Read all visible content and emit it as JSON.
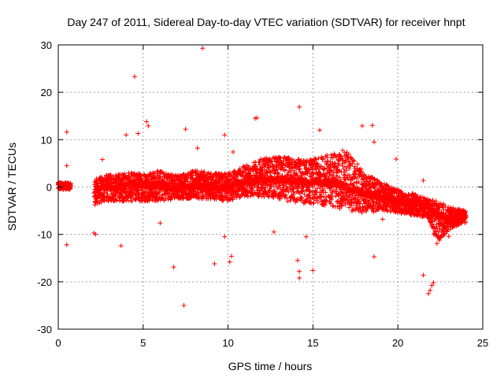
{
  "chart_data": {
    "type": "scatter",
    "title": "Day 247 of 2011, Sidereal Day-to-day VTEC variation (SDTVAR) for receiver hnpt",
    "xlabel": "GPS time / hours",
    "ylabel": "SDTVAR / TECUs",
    "xlim": [
      0,
      25
    ],
    "ylim": [
      -30,
      30
    ],
    "xticks": [
      0,
      5,
      10,
      15,
      20,
      25
    ],
    "yticks": [
      -30,
      -20,
      -10,
      0,
      10,
      20,
      30
    ],
    "grid": true,
    "marker": "+",
    "color": "#ff0000",
    "series": [
      {
        "name": "SDTVAR",
        "trend": [
          {
            "x": 0.0,
            "y": 0.5,
            "lo": -0.6,
            "hi": 1.0
          },
          {
            "x": 0.6,
            "y": 0.3,
            "lo": -0.5,
            "hi": 0.8
          },
          {
            "x": 2.0,
            "y": -1.0,
            "lo": -4.0,
            "hi": 1.5
          },
          {
            "x": 2.8,
            "y": 0.0,
            "lo": -3.0,
            "hi": 2.5
          },
          {
            "x": 4.0,
            "y": 0.5,
            "lo": -3.0,
            "hi": 3.0
          },
          {
            "x": 5.0,
            "y": 0.5,
            "lo": -3.0,
            "hi": 3.0
          },
          {
            "x": 6.0,
            "y": 0.5,
            "lo": -3.0,
            "hi": 3.5
          },
          {
            "x": 7.0,
            "y": -0.5,
            "lo": -2.5,
            "hi": 2.5
          },
          {
            "x": 8.0,
            "y": 0.3,
            "lo": -2.5,
            "hi": 3.5
          },
          {
            "x": 9.0,
            "y": 0.5,
            "lo": -2.5,
            "hi": 3.0
          },
          {
            "x": 10.0,
            "y": 0.0,
            "lo": -3.0,
            "hi": 3.0
          },
          {
            "x": 11.0,
            "y": 1.0,
            "lo": -2.0,
            "hi": 4.5
          },
          {
            "x": 12.0,
            "y": 1.5,
            "lo": -2.0,
            "hi": 6.0
          },
          {
            "x": 13.0,
            "y": 1.5,
            "lo": -2.5,
            "hi": 6.5
          },
          {
            "x": 14.0,
            "y": 1.0,
            "lo": -3.5,
            "hi": 6.0
          },
          {
            "x": 15.0,
            "y": 1.0,
            "lo": -3.5,
            "hi": 6.0
          },
          {
            "x": 16.0,
            "y": 1.0,
            "lo": -4.0,
            "hi": 7.0
          },
          {
            "x": 17.0,
            "y": 0.0,
            "lo": -5.0,
            "hi": 8.0
          },
          {
            "x": 18.0,
            "y": -1.5,
            "lo": -5.5,
            "hi": 3.0
          },
          {
            "x": 19.0,
            "y": -2.0,
            "lo": -5.0,
            "hi": 1.0
          },
          {
            "x": 20.0,
            "y": -3.0,
            "lo": -5.5,
            "hi": -0.5
          },
          {
            "x": 21.0,
            "y": -3.5,
            "lo": -6.0,
            "hi": -1.5
          },
          {
            "x": 21.8,
            "y": -4.0,
            "lo": -6.5,
            "hi": -2.5
          },
          {
            "x": 22.3,
            "y": -6.0,
            "lo": -12.0,
            "hi": -3.0
          },
          {
            "x": 23.0,
            "y": -6.5,
            "lo": -9.0,
            "hi": -4.0
          },
          {
            "x": 24.0,
            "y": -6.0,
            "lo": -7.5,
            "hi": -5.0
          }
        ],
        "outliers": [
          [
            0.5,
            11.6
          ],
          [
            0.5,
            4.5
          ],
          [
            0.5,
            -12.2
          ],
          [
            2.1,
            -9.7
          ],
          [
            2.2,
            -10.0
          ],
          [
            2.6,
            5.8
          ],
          [
            3.7,
            -12.4
          ],
          [
            4.0,
            11.0
          ],
          [
            4.5,
            23.3
          ],
          [
            4.7,
            11.3
          ],
          [
            5.2,
            13.8
          ],
          [
            5.3,
            12.9
          ],
          [
            6.0,
            -7.6
          ],
          [
            6.8,
            -16.9
          ],
          [
            7.4,
            -25.0
          ],
          [
            7.5,
            12.2
          ],
          [
            8.2,
            8.2
          ],
          [
            8.5,
            29.3
          ],
          [
            9.2,
            -16.2
          ],
          [
            9.8,
            11.0
          ],
          [
            9.8,
            -10.5
          ],
          [
            10.1,
            -15.8
          ],
          [
            10.2,
            -14.6
          ],
          [
            10.3,
            7.4
          ],
          [
            11.6,
            14.5
          ],
          [
            11.7,
            14.6
          ],
          [
            12.7,
            -9.5
          ],
          [
            14.2,
            16.9
          ],
          [
            14.1,
            -15.5
          ],
          [
            14.2,
            -17.8
          ],
          [
            14.2,
            -19.2
          ],
          [
            14.6,
            -10.5
          ],
          [
            15.0,
            -17.6
          ],
          [
            15.4,
            12.0
          ],
          [
            16.0,
            3.5
          ],
          [
            17.9,
            12.9
          ],
          [
            18.2,
            -4.5
          ],
          [
            18.5,
            13.0
          ],
          [
            18.6,
            -14.7
          ],
          [
            18.6,
            9.5
          ],
          [
            19.9,
            5.9
          ],
          [
            19.1,
            -6.8
          ],
          [
            21.5,
            1.4
          ],
          [
            21.5,
            -18.6
          ],
          [
            21.8,
            -22.5
          ],
          [
            21.9,
            -21.8
          ],
          [
            22.0,
            -20.8
          ],
          [
            22.1,
            -20.2
          ],
          [
            23.0,
            -10.4
          ]
        ]
      }
    ]
  }
}
